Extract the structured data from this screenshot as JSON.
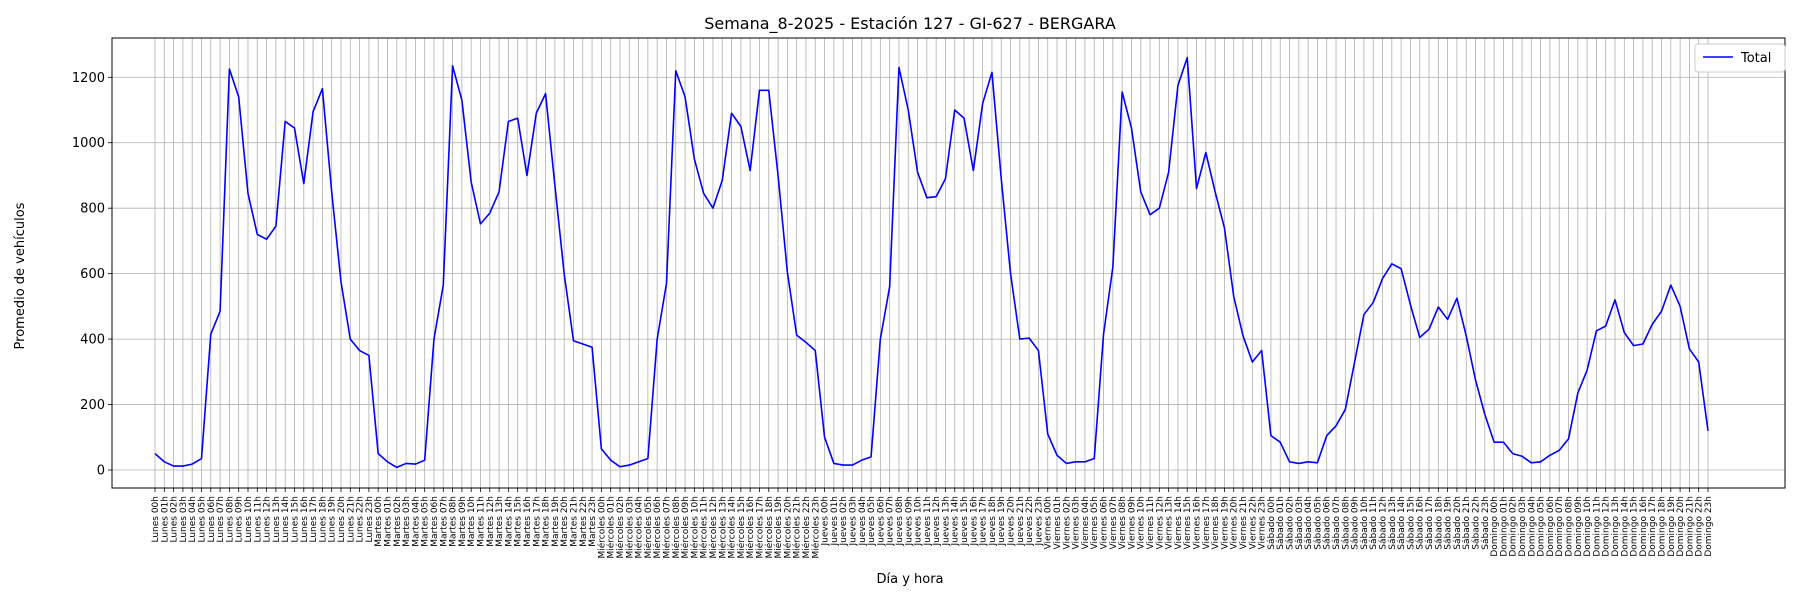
{
  "chart_data": {
    "type": "line",
    "title": "Semana_8-2025 - Estación 127 - GI-627  - BERGARA",
    "xlabel": "Día y hora",
    "ylabel": "Promedio de vehículos",
    "ylim": [
      -55,
      1320
    ],
    "yticks": [
      0,
      200,
      400,
      600,
      800,
      1000,
      1200
    ],
    "grid": true,
    "legend_position": "upper-right",
    "line_color": "#0000ff",
    "x": [
      "Lunes 00h",
      "Lunes 01h",
      "Lunes 02h",
      "Lunes 03h",
      "Lunes 04h",
      "Lunes 05h",
      "Lunes 06h",
      "Lunes 07h",
      "Lunes 08h",
      "Lunes 09h",
      "Lunes 10h",
      "Lunes 11h",
      "Lunes 12h",
      "Lunes 13h",
      "Lunes 14h",
      "Lunes 15h",
      "Lunes 16h",
      "Lunes 17h",
      "Lunes 18h",
      "Lunes 19h",
      "Lunes 20h",
      "Lunes 21h",
      "Lunes 22h",
      "Lunes 23h",
      "Martes 00h",
      "Martes 01h",
      "Martes 02h",
      "Martes 03h",
      "Martes 04h",
      "Martes 05h",
      "Martes 06h",
      "Martes 07h",
      "Martes 08h",
      "Martes 09h",
      "Martes 10h",
      "Martes 11h",
      "Martes 12h",
      "Martes 13h",
      "Martes 14h",
      "Martes 15h",
      "Martes 16h",
      "Martes 17h",
      "Martes 18h",
      "Martes 19h",
      "Martes 20h",
      "Martes 21h",
      "Martes 22h",
      "Martes 23h",
      "Miércoles 00h",
      "Miércoles 01h",
      "Miércoles 02h",
      "Miércoles 03h",
      "Miércoles 04h",
      "Miércoles 05h",
      "Miércoles 06h",
      "Miércoles 07h",
      "Miércoles 08h",
      "Miércoles 09h",
      "Miércoles 10h",
      "Miércoles 11h",
      "Miércoles 12h",
      "Miércoles 13h",
      "Miércoles 14h",
      "Miércoles 15h",
      "Miércoles 16h",
      "Miércoles 17h",
      "Miércoles 18h",
      "Miércoles 19h",
      "Miércoles 20h",
      "Miércoles 21h",
      "Miércoles 22h",
      "Miércoles 23h",
      "Jueves 00h",
      "Jueves 01h",
      "Jueves 02h",
      "Jueves 03h",
      "Jueves 04h",
      "Jueves 05h",
      "Jueves 06h",
      "Jueves 07h",
      "Jueves 08h",
      "Jueves 09h",
      "Jueves 10h",
      "Jueves 11h",
      "Jueves 12h",
      "Jueves 13h",
      "Jueves 14h",
      "Jueves 15h",
      "Jueves 16h",
      "Jueves 17h",
      "Jueves 18h",
      "Jueves 19h",
      "Jueves 20h",
      "Jueves 21h",
      "Jueves 22h",
      "Jueves 23h",
      "Viernes 00h",
      "Viernes 01h",
      "Viernes 02h",
      "Viernes 03h",
      "Viernes 04h",
      "Viernes 05h",
      "Viernes 06h",
      "Viernes 07h",
      "Viernes 08h",
      "Viernes 09h",
      "Viernes 10h",
      "Viernes 11h",
      "Viernes 12h",
      "Viernes 13h",
      "Viernes 14h",
      "Viernes 15h",
      "Viernes 16h",
      "Viernes 17h",
      "Viernes 18h",
      "Viernes 19h",
      "Viernes 20h",
      "Viernes 21h",
      "Viernes 22h",
      "Viernes 23h",
      "Sábado 00h",
      "Sábado 01h",
      "Sábado 02h",
      "Sábado 03h",
      "Sábado 04h",
      "Sábado 05h",
      "Sábado 06h",
      "Sábado 07h",
      "Sábado 08h",
      "Sábado 09h",
      "Sábado 10h",
      "Sábado 11h",
      "Sábado 12h",
      "Sábado 13h",
      "Sábado 14h",
      "Sábado 15h",
      "Sábado 16h",
      "Sábado 17h",
      "Sábado 18h",
      "Sábado 19h",
      "Sábado 20h",
      "Sábado 21h",
      "Sábado 22h",
      "Sábado 23h",
      "Domingo 00h",
      "Domingo 01h",
      "Domingo 02h",
      "Domingo 03h",
      "Domingo 04h",
      "Domingo 05h",
      "Domingo 06h",
      "Domingo 07h",
      "Domingo 08h",
      "Domingo 09h",
      "Domingo 10h",
      "Domingo 11h",
      "Domingo 12h",
      "Domingo 13h",
      "Domingo 14h",
      "Domingo 15h",
      "Domingo 16h",
      "Domingo 17h",
      "Domingo 18h",
      "Domingo 19h",
      "Domingo 20h",
      "Domingo 21h",
      "Domingo 22h",
      "Domingo 23h"
    ],
    "series": [
      {
        "name": "Total",
        "color": "#0000ff",
        "values": [
          50,
          25,
          12,
          12,
          18,
          35,
          415,
          485,
          1225,
          1140,
          845,
          720,
          705,
          745,
          1065,
          1045,
          875,
          1095,
          1165,
          850,
          575,
          400,
          365,
          350,
          50,
          25,
          8,
          20,
          18,
          30,
          400,
          565,
          1235,
          1130,
          880,
          752,
          785,
          850,
          1065,
          1075,
          900,
          1090,
          1150,
          870,
          600,
          395,
          385,
          375,
          65,
          30,
          10,
          15,
          25,
          35,
          400,
          570,
          1220,
          1140,
          950,
          845,
          800,
          885,
          1090,
          1050,
          915,
          1160,
          1160,
          900,
          605,
          412,
          390,
          365,
          100,
          20,
          15,
          15,
          30,
          40,
          400,
          560,
          1230,
          1100,
          910,
          832,
          835,
          890,
          1100,
          1075,
          915,
          1120,
          1215,
          890,
          600,
          400,
          403,
          365,
          110,
          45,
          20,
          25,
          25,
          35,
          415,
          620,
          1155,
          1045,
          850,
          780,
          800,
          910,
          1175,
          1260,
          860,
          970,
          850,
          740,
          530,
          410,
          330,
          365,
          105,
          85,
          25,
          20,
          25,
          22,
          105,
          135,
          185,
          330,
          475,
          512,
          585,
          630,
          615,
          505,
          405,
          430,
          498,
          460,
          525,
          410,
          275,
          170,
          85,
          85,
          50,
          42,
          22,
          25,
          45,
          60,
          95,
          235,
          305,
          425,
          440,
          520,
          420,
          380,
          385,
          445,
          485,
          565,
          500,
          370,
          330,
          120
        ]
      }
    ]
  }
}
